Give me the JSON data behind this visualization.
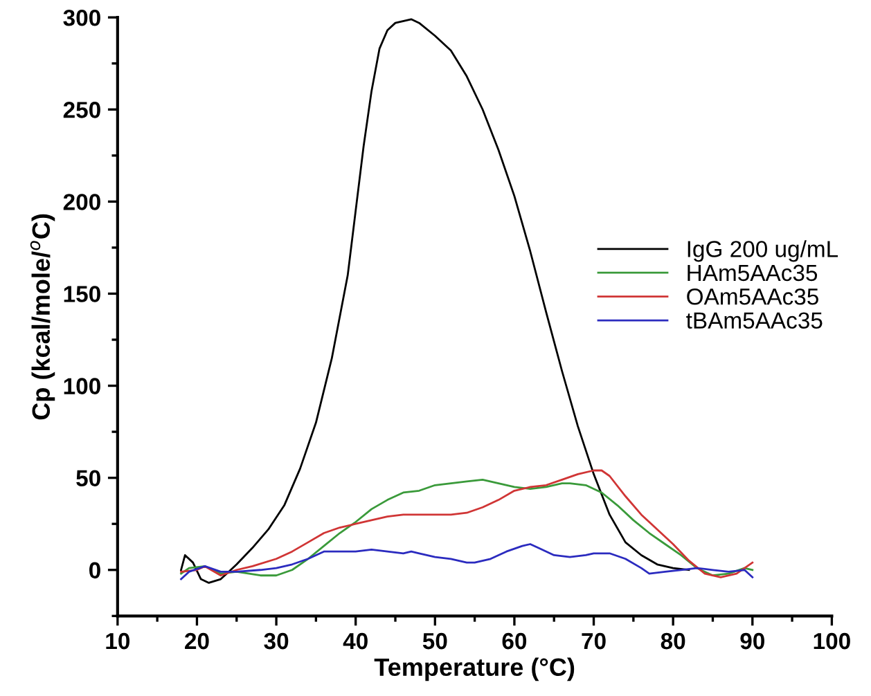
{
  "chart_data": {
    "type": "line",
    "xlabel": "Temperature (°C)",
    "ylabel": "Cp (kcal/mole/$^{o}$C)",
    "xlim": [
      10,
      100
    ],
    "xticks": [
      10,
      20,
      30,
      40,
      50,
      60,
      70,
      80,
      90,
      100
    ],
    "ylim": [
      -25,
      300
    ],
    "yticks": [
      0,
      50,
      100,
      150,
      200,
      250,
      300
    ],
    "legend": "right",
    "grid": false,
    "marker": "none",
    "line_style": "solid",
    "series": [
      {
        "name": "IgG 200 ug/mL",
        "color": "#000000",
        "x": [
          18,
          18.5,
          19.5,
          20.5,
          21.5,
          23,
          24,
          25,
          27,
          29,
          31,
          33,
          35,
          37,
          39,
          40,
          41,
          42,
          43,
          44,
          45,
          47,
          48,
          50,
          52,
          54,
          56,
          58,
          60,
          62,
          64,
          66,
          68,
          70,
          72,
          74,
          76,
          78,
          80,
          82
        ],
        "values": [
          0,
          8,
          4,
          -5,
          -7,
          -5,
          -1,
          3,
          12,
          22,
          35,
          55,
          80,
          115,
          160,
          195,
          230,
          260,
          283,
          293,
          297,
          299,
          297,
          290,
          282,
          268,
          250,
          228,
          203,
          173,
          140,
          108,
          78,
          52,
          30,
          15,
          8,
          3,
          1,
          0
        ]
      },
      {
        "name": "HAm5AAc35",
        "color": "#3a9a3a",
        "x": [
          18,
          19,
          21,
          23,
          25,
          28,
          30,
          32,
          34,
          36,
          38,
          40,
          42,
          44,
          46,
          48,
          50,
          52,
          54,
          56,
          58,
          60,
          62,
          64,
          66,
          67,
          69,
          71,
          73,
          75,
          77,
          79,
          81,
          83,
          85,
          87,
          89,
          90
        ],
        "values": [
          -2,
          1,
          2,
          -2,
          -1,
          -3,
          -3,
          0,
          6,
          13,
          20,
          26,
          33,
          38,
          42,
          43,
          46,
          47,
          48,
          49,
          47,
          45,
          44,
          45,
          47,
          47,
          46,
          42,
          35,
          27,
          20,
          14,
          8,
          1,
          -3,
          -2,
          1,
          0
        ]
      },
      {
        "name": "OAm5AAc35",
        "color": "#d03535",
        "x": [
          18,
          20,
          21,
          23,
          25,
          27,
          30,
          32,
          34,
          36,
          38,
          40,
          42,
          44,
          46,
          48,
          50,
          52,
          54,
          56,
          58,
          60,
          62,
          64,
          66,
          68,
          70,
          71,
          72,
          74,
          76,
          78,
          80,
          82,
          84,
          86,
          88,
          90
        ],
        "values": [
          -1,
          0,
          2,
          -3,
          0,
          2,
          6,
          10,
          15,
          20,
          23,
          25,
          27,
          29,
          30,
          30,
          30,
          30,
          31,
          34,
          38,
          43,
          45,
          46,
          49,
          52,
          54,
          54,
          51,
          40,
          30,
          22,
          14,
          5,
          -2,
          -4,
          -2,
          4
        ]
      },
      {
        "name": "tBAm5AAc35",
        "color": "#2b2bbf",
        "x": [
          18,
          19,
          21,
          23,
          25,
          28,
          30,
          32,
          34,
          36,
          38,
          40,
          42,
          44,
          46,
          47,
          48,
          50,
          52,
          54,
          55,
          57,
          59,
          61,
          62,
          63,
          65,
          67,
          69,
          70,
          72,
          74,
          76,
          77,
          79,
          81,
          83,
          85,
          87,
          89,
          90
        ],
        "values": [
          -5,
          -1,
          2,
          -1,
          -1,
          0,
          1,
          3,
          6,
          10,
          10,
          10,
          11,
          10,
          9,
          10,
          9,
          7,
          6,
          4,
          4,
          6,
          10,
          13,
          14,
          12,
          8,
          7,
          8,
          9,
          9,
          6,
          1,
          -2,
          -1,
          0,
          1,
          0,
          -1,
          0,
          -4
        ]
      }
    ]
  }
}
